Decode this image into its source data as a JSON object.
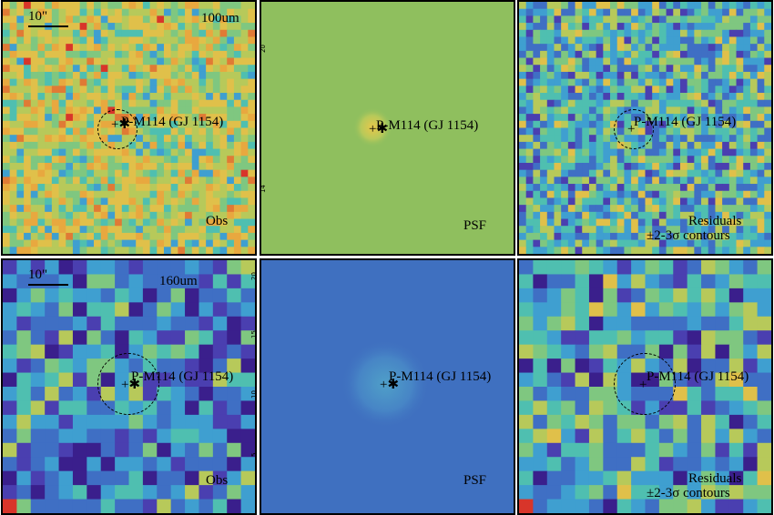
{
  "panels": {
    "r1c1": {
      "band": "100um",
      "caption": "Obs",
      "scale": "10\"",
      "target": "P-M114 (GJ 1154)"
    },
    "r1c2": {
      "caption": "PSF",
      "target": "P-M114 (GJ 1154)"
    },
    "r1c3": {
      "caption1": "Residuals",
      "caption2": "±2-3σ contours",
      "target": "P-M114 (GJ 1154)"
    },
    "r2c1": {
      "band": "160um",
      "caption": "Obs",
      "scale": "10\"",
      "target": "P-M114 (GJ 1154)"
    },
    "r2c2": {
      "caption": "PSF",
      "target": "P-M114 (GJ 1154)"
    },
    "r2c3": {
      "caption1": "Residuals",
      "caption2": "±2-3σ contours",
      "target": "P-M114 (GJ 1154)"
    }
  },
  "axis_labels": {
    "r1c2": [
      "20",
      "14"
    ],
    "r2c1": [
      "20",
      "15",
      "10",
      "5"
    ]
  },
  "colors": {
    "psf_top_bg": "#8fbf5e",
    "psf_bottom_bg": "#3f70c0",
    "palette": [
      "#3a1f8c",
      "#4a3fb0",
      "#3f6fc4",
      "#3f9fd0",
      "#4fbfb0",
      "#7fc780",
      "#b7c95a",
      "#e0c04a",
      "#e8a83f",
      "#e07a35",
      "#d8352a"
    ]
  }
}
